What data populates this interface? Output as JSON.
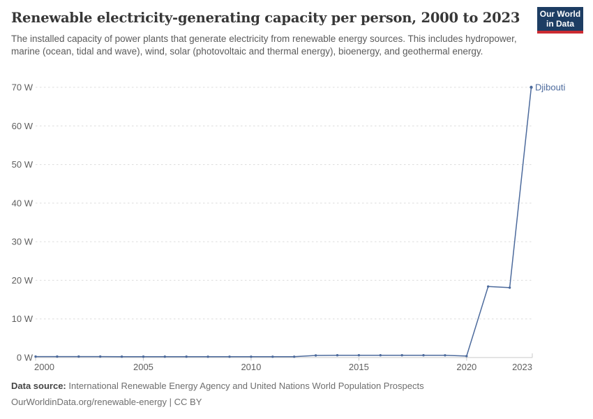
{
  "header": {
    "title": "Renewable electricity-generating capacity per person, 2000 to 2023",
    "subtitle": "The installed capacity of power plants that generate electricity from renewable energy sources. This includes hydropower, marine (ocean, tidal and wave), wind, solar (photovoltaic and thermal energy), bioenergy, and geothermal energy.",
    "logo": {
      "line1": "Our World",
      "line2": "in Data",
      "navy_color": "#1d3d63",
      "red_color": "#cc2b32"
    }
  },
  "chart_data": {
    "type": "line",
    "title": "Renewable electricity-generating capacity per person, 2000 to 2023",
    "unit": "W",
    "x": [
      2000,
      2001,
      2002,
      2003,
      2004,
      2005,
      2006,
      2007,
      2008,
      2009,
      2010,
      2011,
      2012,
      2013,
      2014,
      2015,
      2016,
      2017,
      2018,
      2019,
      2020,
      2021,
      2022,
      2023
    ],
    "series": [
      {
        "name": "Djibouti",
        "color": "#4C6A9C",
        "values": [
          0.26,
          0.26,
          0.25,
          0.25,
          0.24,
          0.24,
          0.23,
          0.23,
          0.22,
          0.22,
          0.21,
          0.21,
          0.21,
          0.55,
          0.6,
          0.6,
          0.6,
          0.6,
          0.59,
          0.58,
          0.38,
          18.4,
          18.1,
          70
        ]
      }
    ],
    "xlabel": "",
    "ylabel": "",
    "ylim": [
      0,
      70
    ],
    "y_ticks": [
      0,
      10,
      20,
      30,
      40,
      50,
      60,
      70
    ],
    "x_ticks": [
      2000,
      2005,
      2010,
      2015,
      2020,
      2023
    ],
    "grid": "horizontal-dashed",
    "legend_position": "end-of-line-label",
    "colors": {
      "gridline": "#dcdcdc",
      "axis": "#c8c8c8",
      "tick_label": "#5f5f5f"
    }
  },
  "footer": {
    "source_label": "Data source:",
    "source_text": "International Renewable Energy Agency and United Nations World Population Prospects",
    "link_text": "OurWorldinData.org/renewable-energy | CC BY"
  }
}
